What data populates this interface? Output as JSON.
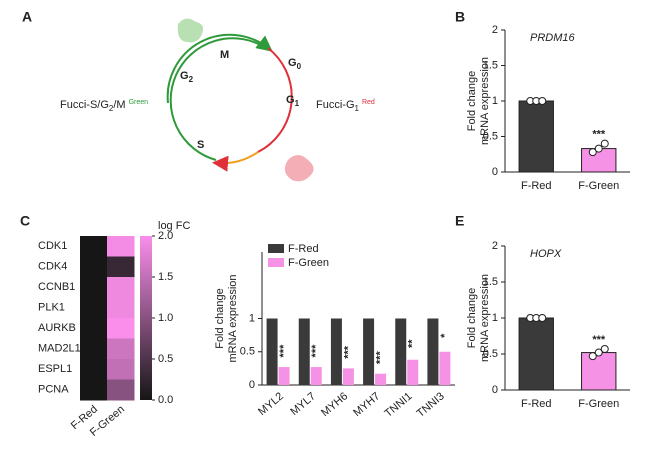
{
  "panel_labels": [
    "A",
    "B",
    "C",
    "E"
  ],
  "diagram": {
    "phases": [
      {
        "text": "M"
      },
      {
        "text": "G",
        "sub": "0"
      },
      {
        "text": "G",
        "sub": "1"
      },
      {
        "text": "S"
      },
      {
        "text": "G",
        "sub": "2"
      }
    ],
    "left_label": {
      "text": "Fucci-S/G",
      "sub": "2",
      "rest": "/M",
      "sup": "Green"
    },
    "right_label": {
      "text": "Fucci-G",
      "sub": "1",
      "sup": "Red"
    }
  },
  "chart_data": [
    {
      "type": "bar",
      "title": "PRDM16",
      "ylabel": [
        "Fold change",
        "mRNA expression"
      ],
      "categories": [
        "F-Red",
        "F-Green"
      ],
      "values": [
        1,
        0.33
      ],
      "colors": [
        "#3a3a3a",
        "#f592e6"
      ],
      "points": [
        [
          1,
          1,
          1
        ],
        [
          0.28,
          0.33,
          0.4
        ]
      ],
      "annotations": [
        null,
        "***"
      ],
      "ylim": [
        0,
        2
      ],
      "yticks": [
        0,
        0.5,
        1,
        1.5,
        2
      ]
    },
    {
      "type": "heatmap",
      "rows": [
        "CDK1",
        "CDK4",
        "CCNB1",
        "PLK1",
        "AURKB",
        "MAD2L1",
        "ESPL1",
        "PCNA"
      ],
      "columns": [
        "F-Red",
        "F-Green"
      ],
      "values": [
        [
          0,
          1.95
        ],
        [
          0,
          0.3
        ],
        [
          0,
          1.9
        ],
        [
          0,
          1.9
        ],
        [
          0,
          2
        ],
        [
          0,
          1.6
        ],
        [
          0,
          1.5
        ],
        [
          0,
          1
        ]
      ],
      "cmap": [
        "#161616",
        "#fa8eea"
      ],
      "colorbar_title": "log FC",
      "clim": [
        0,
        2
      ],
      "cticks": [
        {
          "value": 0,
          "label": "0.0"
        },
        0.5,
        {
          "value": 1,
          "label": "1.0"
        },
        1.5,
        {
          "value": 2,
          "label": "2.0"
        }
      ]
    },
    {
      "type": "grouped_bar",
      "ylabel": [
        "Fold change",
        "mRNA expression"
      ],
      "categories": [
        "MYL2",
        "MYL7",
        "MYH6",
        "MYH7",
        "TNNI1",
        "TNNI3"
      ],
      "series": [
        {
          "name": "F-Red",
          "color": "#3a3a3a",
          "values": [
            1,
            1,
            1,
            1,
            1,
            1
          ]
        },
        {
          "name": "F-Green",
          "color": "#f592e6",
          "values": [
            0.27,
            0.27,
            0.25,
            0.17,
            0.38,
            0.5
          ]
        }
      ],
      "annotations": [
        "***",
        "***",
        "***",
        "***",
        "**",
        "*"
      ],
      "ylim": [
        0,
        2
      ],
      "yticks": [
        0,
        0.5,
        1
      ]
    },
    {
      "type": "bar",
      "title": "HOPX",
      "ylabel": [
        "Fold change",
        "mRNA expression"
      ],
      "categories": [
        "F-Red",
        "F-Green"
      ],
      "values": [
        1,
        0.52
      ],
      "colors": [
        "#3a3a3a",
        "#f592e6"
      ],
      "points": [
        [
          1,
          1,
          1
        ],
        [
          0.47,
          0.52,
          0.57
        ]
      ],
      "annotations": [
        null,
        "***"
      ],
      "ylim": [
        0,
        2
      ],
      "yticks": [
        0,
        0.5,
        1,
        1.5,
        2
      ]
    }
  ]
}
